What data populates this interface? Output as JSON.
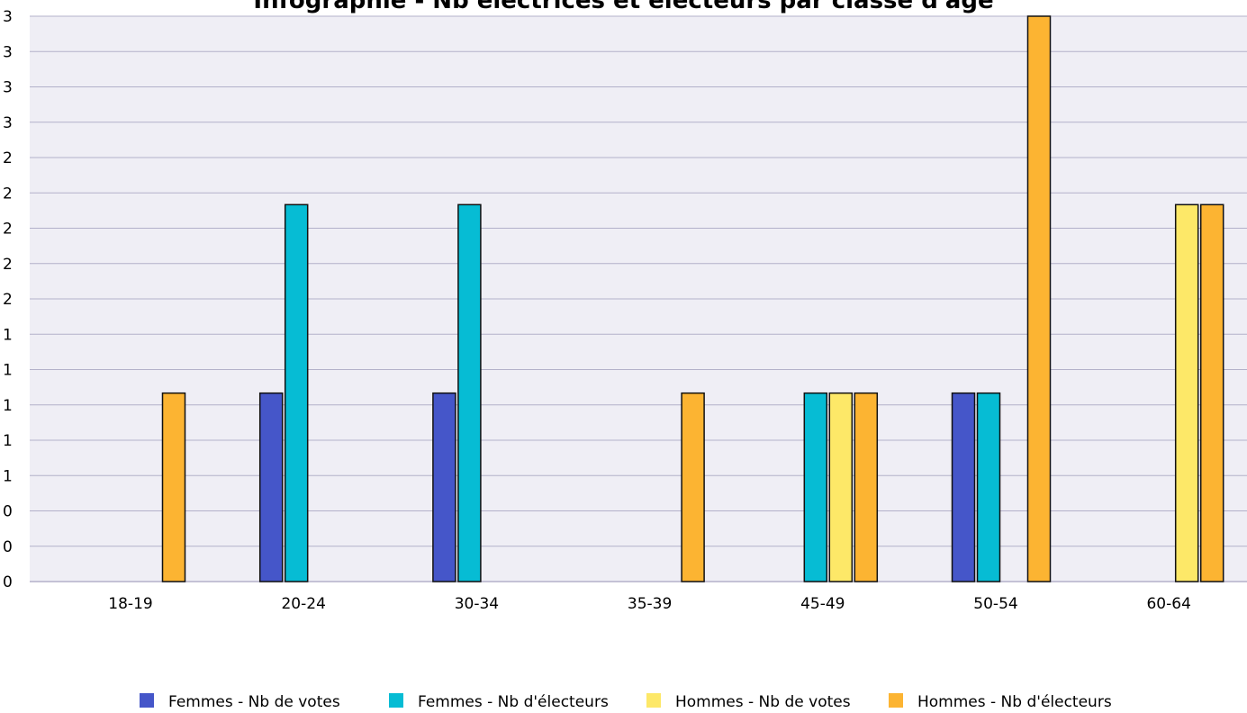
{
  "chart_data": {
    "type": "bar",
    "title": "Infographie - Nb électrices et électeurs par classe d'âge",
    "categories": [
      "18-19",
      "20-24",
      "30-34",
      "35-39",
      "45-49",
      "50-54",
      "60-64"
    ],
    "series": [
      {
        "name": "Femmes - Nb de votes",
        "color": "#4556c9",
        "values": [
          0,
          1,
          1,
          0,
          0,
          1,
          0
        ]
      },
      {
        "name": "Femmes - Nb d'électeurs",
        "color": "#06bcd4",
        "values": [
          0,
          2,
          2,
          0,
          1,
          1,
          0
        ]
      },
      {
        "name": "Hommes - Nb de votes",
        "color": "#fde868",
        "values": [
          0,
          0,
          0,
          0,
          1,
          0,
          2
        ]
      },
      {
        "name": "Hommes - Nb d'électeurs",
        "color": "#fcb432",
        "values": [
          1,
          0,
          0,
          1,
          1,
          3,
          2
        ]
      }
    ],
    "ylim": [
      0,
      3
    ],
    "y_tick_labels": [
      "0",
      "0",
      "0",
      "1",
      "1",
      "1",
      "1",
      "1",
      "2",
      "2",
      "2",
      "2",
      "2",
      "3",
      "3",
      "3",
      "3"
    ],
    "grid": true,
    "legend_position": "bottom",
    "plot_background": "#efeef5",
    "grid_color": "#b3b1ca"
  }
}
